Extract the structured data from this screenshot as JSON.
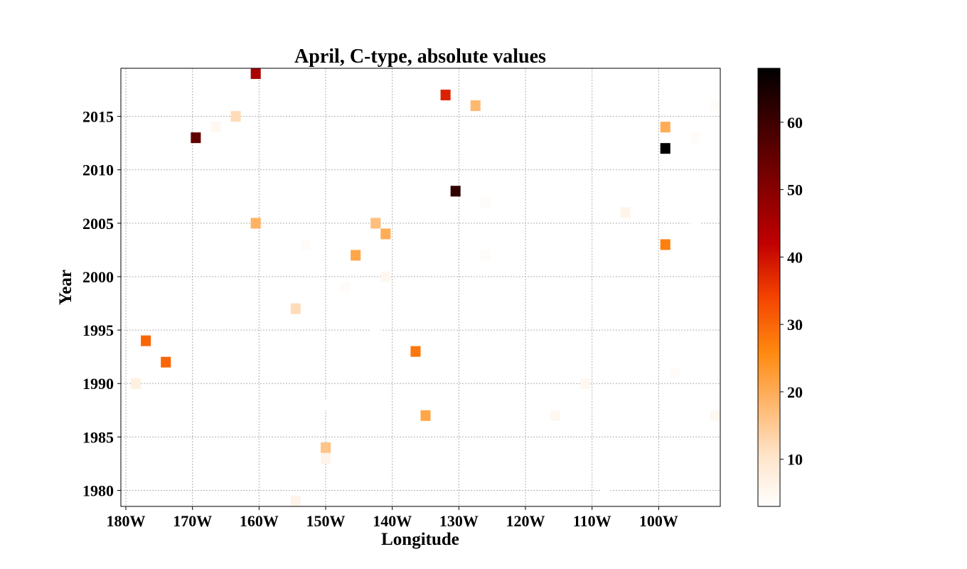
{
  "chart_data": {
    "type": "heatmap",
    "title": "April, C-type, absolute values",
    "xlabel": "Longitude",
    "ylabel": "Year",
    "xlim": [
      -180.75,
      -90.75
    ],
    "ylim": [
      1978.5,
      2019.5
    ],
    "x_ticks": [
      {
        "value": -180,
        "label": "180W"
      },
      {
        "value": -170,
        "label": "170W"
      },
      {
        "value": -160,
        "label": "160W"
      },
      {
        "value": -150,
        "label": "150W"
      },
      {
        "value": -140,
        "label": "140W"
      },
      {
        "value": -130,
        "label": "130W"
      },
      {
        "value": -120,
        "label": "120W"
      },
      {
        "value": -110,
        "label": "110W"
      },
      {
        "value": -100,
        "label": "100W"
      }
    ],
    "y_ticks": [
      {
        "value": 1980,
        "label": "1980"
      },
      {
        "value": 1985,
        "label": "1985"
      },
      {
        "value": 1990,
        "label": "1990"
      },
      {
        "value": 1995,
        "label": "1995"
      },
      {
        "value": 2000,
        "label": "2000"
      },
      {
        "value": 2005,
        "label": "2005"
      },
      {
        "value": 2010,
        "label": "2010"
      },
      {
        "value": 2015,
        "label": "2015"
      }
    ],
    "grid": true,
    "colormap": "gist_heat_r",
    "colorbar": {
      "range": [
        3,
        68
      ],
      "ticks": [
        {
          "value": 10,
          "label": "10"
        },
        {
          "value": 20,
          "label": "20"
        },
        {
          "value": 30,
          "label": "30"
        },
        {
          "value": 40,
          "label": "40"
        },
        {
          "value": 50,
          "label": "50"
        },
        {
          "value": 60,
          "label": "60"
        }
      ]
    },
    "points": [
      {
        "lon": -160.5,
        "year": 2019,
        "value": 45
      },
      {
        "lon": -132.0,
        "year": 2017,
        "value": 38
      },
      {
        "lon": -127.5,
        "year": 2016,
        "value": 18
      },
      {
        "lon": -91.5,
        "year": 2016,
        "value": 4
      },
      {
        "lon": -166.5,
        "year": 2014,
        "value": 5
      },
      {
        "lon": -163.5,
        "year": 2015,
        "value": 12
      },
      {
        "lon": -169.5,
        "year": 2013,
        "value": 55
      },
      {
        "lon": -99.0,
        "year": 2014,
        "value": 20
      },
      {
        "lon": -94.5,
        "year": 2013,
        "value": 4
      },
      {
        "lon": -99.0,
        "year": 2012,
        "value": 68
      },
      {
        "lon": -130.5,
        "year": 2008,
        "value": 62
      },
      {
        "lon": -126.0,
        "year": 2007,
        "value": 4
      },
      {
        "lon": -105.0,
        "year": 2006,
        "value": 6
      },
      {
        "lon": -160.5,
        "year": 2005,
        "value": 19
      },
      {
        "lon": -142.5,
        "year": 2005,
        "value": 17
      },
      {
        "lon": -141.0,
        "year": 2004,
        "value": 20
      },
      {
        "lon": -99.0,
        "year": 2004,
        "value": 3
      },
      {
        "lon": -94.5,
        "year": 2005,
        "value": 3
      },
      {
        "lon": -153.0,
        "year": 2003,
        "value": 4
      },
      {
        "lon": -99.0,
        "year": 2003,
        "value": 27
      },
      {
        "lon": -145.5,
        "year": 2002,
        "value": 21
      },
      {
        "lon": -126.0,
        "year": 2002,
        "value": 4
      },
      {
        "lon": -141.0,
        "year": 2000,
        "value": 5
      },
      {
        "lon": -147.0,
        "year": 1999,
        "value": 4
      },
      {
        "lon": -154.5,
        "year": 1997,
        "value": 12
      },
      {
        "lon": -142.5,
        "year": 1995,
        "value": 3
      },
      {
        "lon": -177.0,
        "year": 1994,
        "value": 30
      },
      {
        "lon": -174.0,
        "year": 1992,
        "value": 30
      },
      {
        "lon": -136.5,
        "year": 1993,
        "value": 28
      },
      {
        "lon": -178.5,
        "year": 1990,
        "value": 7
      },
      {
        "lon": -111.0,
        "year": 1990,
        "value": 5
      },
      {
        "lon": -97.5,
        "year": 1991,
        "value": 4
      },
      {
        "lon": -150.0,
        "year": 1988,
        "value": 3
      },
      {
        "lon": -135.0,
        "year": 1987,
        "value": 21
      },
      {
        "lon": -115.5,
        "year": 1987,
        "value": 5
      },
      {
        "lon": -91.5,
        "year": 1987,
        "value": 5
      },
      {
        "lon": -150.0,
        "year": 1984,
        "value": 16
      },
      {
        "lon": -150.0,
        "year": 1983,
        "value": 6
      },
      {
        "lon": -108.0,
        "year": 1980,
        "value": 3
      },
      {
        "lon": -154.5,
        "year": 1979,
        "value": 6
      }
    ]
  }
}
